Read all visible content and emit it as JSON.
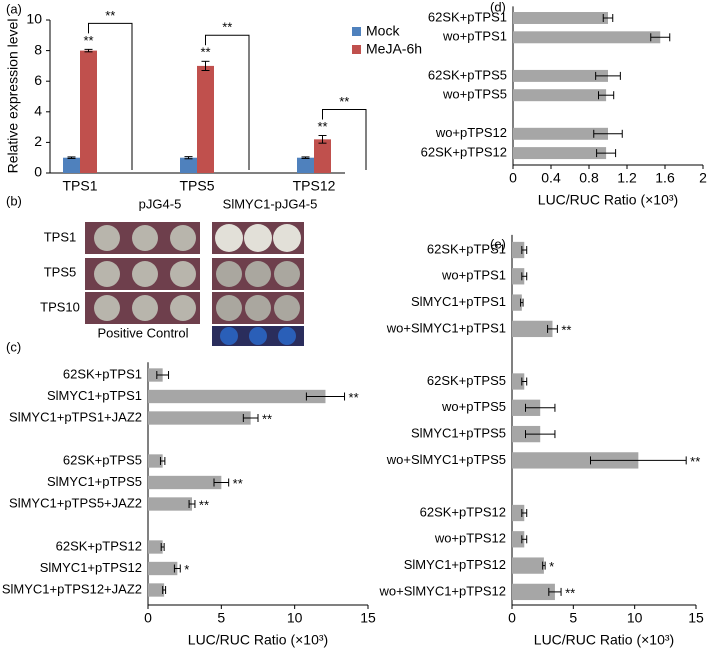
{
  "chart_data": [
    {
      "type": "bar",
      "panel_label": "(a)",
      "y_label": "Relative expression level",
      "categories": [
        "TPS1",
        "TPS5",
        "TPS12"
      ],
      "series": [
        {
          "name": "Mock",
          "color": "#4f81bd",
          "values": [
            1.0,
            1.0,
            1.0
          ],
          "errors": [
            0.05,
            0.07,
            0.05
          ]
        },
        {
          "name": "MeJA-6h",
          "color": "#c0504d",
          "values": [
            8.0,
            7.0,
            2.2
          ],
          "errors": [
            0.08,
            0.3,
            0.25
          ],
          "significance": [
            "**",
            "**",
            "**"
          ]
        }
      ],
      "bracket_labels": [
        "**",
        "**",
        "**"
      ],
      "ylim": [
        0,
        10
      ],
      "yticks": [
        0,
        2,
        4,
        6,
        8,
        10
      ],
      "legend": "upper right"
    },
    {
      "type": "barh",
      "panel_label": "(c)",
      "x_label": "LUC/RUC Ratio (×10³)",
      "color": "#a6a6a6",
      "categories": [
        "62SK+pTPS1",
        "SlMYC1+pTPS1",
        "SlMYC1+pTPS1+JAZ2",
        null,
        "62SK+pTPS5",
        "SlMYC1+pTPS5",
        "SlMYC1+pTPS5+JAZ2",
        null,
        "62SK+pTPS12",
        "SlMYC1+pTPS12",
        "SlMYC1+pTPS12+JAZ2"
      ],
      "values": [
        1.0,
        12.1,
        7.0,
        null,
        1.0,
        5.0,
        3.0,
        null,
        1.0,
        2.0,
        1.1
      ],
      "errors": [
        0.4,
        1.3,
        0.5,
        null,
        0.15,
        0.5,
        0.2,
        null,
        0.1,
        0.2,
        0.1
      ],
      "significance": [
        null,
        "**",
        "**",
        null,
        null,
        "**",
        "**",
        null,
        null,
        "*",
        null
      ],
      "xlim": [
        0,
        15
      ],
      "xticks": [
        0,
        5,
        10,
        15
      ]
    },
    {
      "type": "barh",
      "panel_label": "(d)",
      "x_label": "LUC/RUC Ratio (×10³)",
      "color": "#a6a6a6",
      "categories": [
        "62SK+pTPS1",
        "wo+pTPS1",
        null,
        "62SK+pTPS5",
        "wo+pTPS5",
        null,
        "wo+pTPS12",
        "62SK+pTPS12"
      ],
      "values": [
        1.0,
        1.55,
        null,
        1.0,
        0.98,
        null,
        1.0,
        0.98
      ],
      "errors": [
        0.05,
        0.1,
        null,
        0.13,
        0.08,
        null,
        0.15,
        0.1
      ],
      "xlim": [
        0,
        2
      ],
      "xticks": [
        0,
        0.4,
        0.8,
        1.2,
        1.6,
        2
      ]
    },
    {
      "type": "barh",
      "panel_label": "(e)",
      "x_label": "LUC/RUC Ratio (×10³)",
      "color": "#a6a6a6",
      "categories": [
        "62SK+pTPS1",
        "wo+pTPS1",
        "SlMYC1+pTPS1",
        "wo+SlMYC1+pTPS1",
        null,
        "62SK+pTPS5",
        "wo+pTPS5",
        "SlMYC1+pTPS5",
        "wo+SlMYC1+pTPS5",
        null,
        "62SK+pTPS12",
        "wo+pTPS12",
        "SlMYC1+pTPS12",
        "wo+SlMYC1+pTPS12"
      ],
      "values": [
        1.0,
        1.0,
        0.8,
        3.3,
        null,
        1.0,
        2.3,
        2.3,
        10.3,
        null,
        1.0,
        1.0,
        2.6,
        3.5
      ],
      "errors": [
        0.2,
        0.2,
        0.1,
        0.4,
        null,
        0.2,
        1.2,
        1.2,
        3.9,
        null,
        0.2,
        0.2,
        0.1,
        0.5
      ],
      "significance": [
        null,
        null,
        null,
        "**",
        null,
        null,
        null,
        null,
        "**",
        null,
        null,
        null,
        "*",
        "**"
      ],
      "xlim": [
        0,
        15
      ],
      "xticks": [
        0,
        5,
        10,
        15
      ]
    }
  ],
  "panel_b": {
    "panel_label": "(b)",
    "columns": [
      "pJG4-5",
      "SlMYC1-pJG4-5"
    ],
    "rows": [
      "TPS1",
      "TPS5",
      "TPS10",
      "Positive Control"
    ]
  }
}
